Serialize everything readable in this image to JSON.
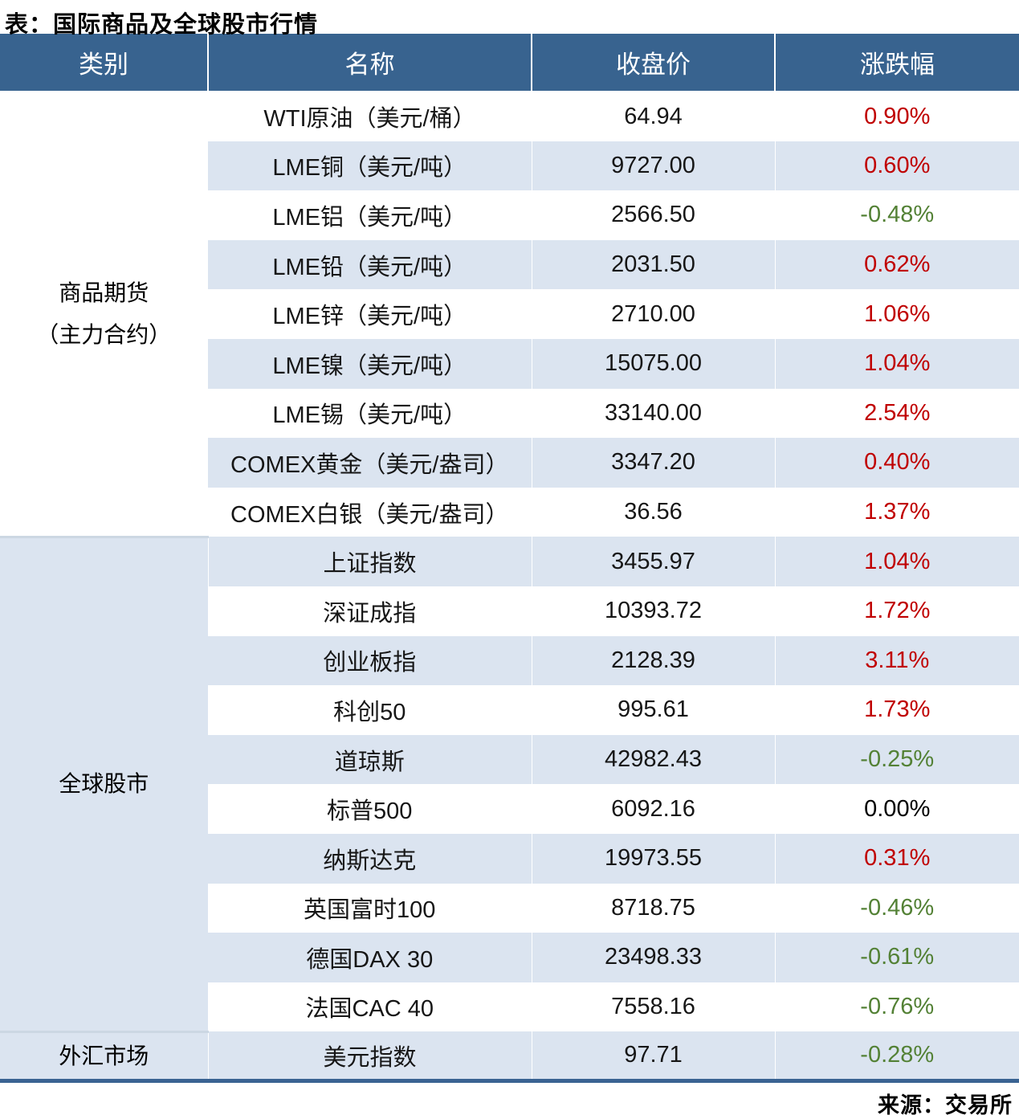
{
  "title": "表：国际商品及全球股市行情",
  "source": "来源：交易所",
  "colors": {
    "header_bg": "#38638f",
    "header_text": "#ffffff",
    "row_alt_bg": "#dbe4f0",
    "up": "#c00000",
    "down": "#538135",
    "flat": "#000000",
    "bottom_bar": "#3a6392",
    "group_divider": "#ccd7e3"
  },
  "chart_data": {
    "type": "table",
    "title": "表：国际商品及全球股市行情",
    "columns": [
      "类别",
      "名称",
      "收盘价",
      "涨跌幅"
    ],
    "groups": [
      {
        "category": "商品期货（主力合约）",
        "category_lines": [
          "商品期货",
          "（主力合约）"
        ],
        "rows": [
          {
            "name": "WTI原油（美元/桶）",
            "close": "64.94",
            "change": "0.90%",
            "direction": "up"
          },
          {
            "name": "LME铜（美元/吨）",
            "close": "9727.00",
            "change": "0.60%",
            "direction": "up"
          },
          {
            "name": "LME铝（美元/吨）",
            "close": "2566.50",
            "change": "-0.48%",
            "direction": "down"
          },
          {
            "name": "LME铅（美元/吨）",
            "close": "2031.50",
            "change": "0.62%",
            "direction": "up"
          },
          {
            "name": "LME锌（美元/吨）",
            "close": "2710.00",
            "change": "1.06%",
            "direction": "up"
          },
          {
            "name": "LME镍（美元/吨）",
            "close": "15075.00",
            "change": "1.04%",
            "direction": "up"
          },
          {
            "name": "LME锡（美元/吨）",
            "close": "33140.00",
            "change": "2.54%",
            "direction": "up"
          },
          {
            "name": "COMEX黄金（美元/盎司）",
            "close": "3347.20",
            "change": "0.40%",
            "direction": "up"
          },
          {
            "name": "COMEX白银（美元/盎司）",
            "close": "36.56",
            "change": "1.37%",
            "direction": "up"
          }
        ]
      },
      {
        "category": "全球股市",
        "category_lines": [
          "全球股市"
        ],
        "rows": [
          {
            "name": "上证指数",
            "close": "3455.97",
            "change": "1.04%",
            "direction": "up"
          },
          {
            "name": "深证成指",
            "close": "10393.72",
            "change": "1.72%",
            "direction": "up"
          },
          {
            "name": "创业板指",
            "close": "2128.39",
            "change": "3.11%",
            "direction": "up"
          },
          {
            "name": "科创50",
            "close": "995.61",
            "change": "1.73%",
            "direction": "up"
          },
          {
            "name": "道琼斯",
            "close": "42982.43",
            "change": "-0.25%",
            "direction": "down"
          },
          {
            "name": "标普500",
            "close": "6092.16",
            "change": "0.00%",
            "direction": "flat"
          },
          {
            "name": "纳斯达克",
            "close": "19973.55",
            "change": "0.31%",
            "direction": "up"
          },
          {
            "name": "英国富时100",
            "close": "8718.75",
            "change": "-0.46%",
            "direction": "down"
          },
          {
            "name": "德国DAX 30",
            "close": "23498.33",
            "change": "-0.61%",
            "direction": "down"
          },
          {
            "name": "法国CAC 40",
            "close": "7558.16",
            "change": "-0.76%",
            "direction": "down"
          }
        ]
      },
      {
        "category": "外汇市场",
        "category_lines": [
          "外汇市场"
        ],
        "rows": [
          {
            "name": "美元指数",
            "close": "97.71",
            "change": "-0.28%",
            "direction": "down"
          }
        ]
      }
    ],
    "source": "来源：交易所"
  }
}
